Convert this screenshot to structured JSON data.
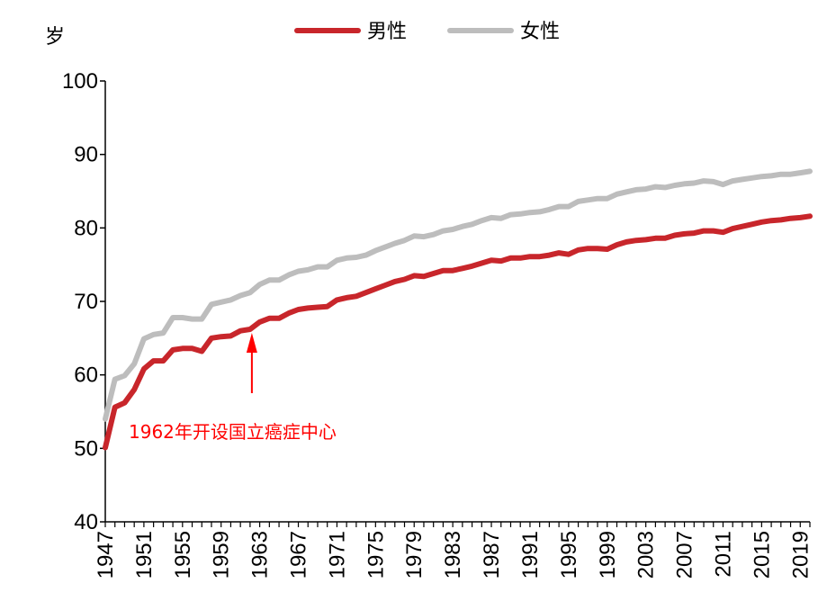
{
  "chart_data": {
    "type": "line",
    "ylabel": "岁",
    "ylim": [
      40,
      100
    ],
    "yticks": [
      40,
      50,
      60,
      70,
      80,
      90,
      100
    ],
    "xlim": [
      1947,
      2020
    ],
    "xtick_labels": [
      "1947",
      "1951",
      "1955",
      "1959",
      "1963",
      "1967",
      "1971",
      "1975",
      "1979",
      "1983",
      "1987",
      "1991",
      "1995",
      "1999",
      "2003",
      "2007",
      "2011",
      "2015",
      "2019"
    ],
    "legend_position": "top-center",
    "grid": false,
    "series": [
      {
        "name": "男性",
        "color": "#c8262b",
        "x": [
          1947,
          1948,
          1949,
          1950,
          1951,
          1952,
          1953,
          1954,
          1955,
          1956,
          1957,
          1958,
          1959,
          1960,
          1961,
          1962,
          1963,
          1964,
          1965,
          1966,
          1967,
          1968,
          1969,
          1970,
          1971,
          1972,
          1973,
          1974,
          1975,
          1976,
          1977,
          1978,
          1979,
          1980,
          1981,
          1982,
          1983,
          1984,
          1985,
          1986,
          1987,
          1988,
          1989,
          1990,
          1991,
          1992,
          1993,
          1994,
          1995,
          1996,
          1997,
          1998,
          1999,
          2000,
          2001,
          2002,
          2003,
          2004,
          2005,
          2006,
          2007,
          2008,
          2009,
          2010,
          2011,
          2012,
          2013,
          2014,
          2015,
          2016,
          2017,
          2018,
          2019,
          2020
        ],
        "values": [
          50.1,
          55.6,
          56.2,
          58.0,
          60.8,
          61.9,
          61.9,
          63.4,
          63.6,
          63.6,
          63.2,
          65.0,
          65.2,
          65.3,
          66.0,
          66.2,
          67.2,
          67.7,
          67.7,
          68.4,
          68.9,
          69.1,
          69.2,
          69.3,
          70.2,
          70.5,
          70.7,
          71.2,
          71.7,
          72.2,
          72.7,
          73.0,
          73.5,
          73.4,
          73.8,
          74.2,
          74.2,
          74.5,
          74.8,
          75.2,
          75.6,
          75.5,
          75.9,
          75.9,
          76.1,
          76.1,
          76.3,
          76.6,
          76.4,
          77.0,
          77.2,
          77.2,
          77.1,
          77.7,
          78.1,
          78.3,
          78.4,
          78.6,
          78.6,
          79.0,
          79.2,
          79.3,
          79.6,
          79.6,
          79.4,
          79.9,
          80.2,
          80.5,
          80.8,
          81.0,
          81.1,
          81.3,
          81.4,
          81.6
        ]
      },
      {
        "name": "女性",
        "color": "#bdbdbd",
        "x": [
          1947,
          1948,
          1949,
          1950,
          1951,
          1952,
          1953,
          1954,
          1955,
          1956,
          1957,
          1958,
          1959,
          1960,
          1961,
          1962,
          1963,
          1964,
          1965,
          1966,
          1967,
          1968,
          1969,
          1970,
          1971,
          1972,
          1973,
          1974,
          1975,
          1976,
          1977,
          1978,
          1979,
          1980,
          1981,
          1982,
          1983,
          1984,
          1985,
          1986,
          1987,
          1988,
          1989,
          1990,
          1991,
          1992,
          1993,
          1994,
          1995,
          1996,
          1997,
          1998,
          1999,
          2000,
          2001,
          2002,
          2003,
          2004,
          2005,
          2006,
          2007,
          2008,
          2009,
          2010,
          2011,
          2012,
          2013,
          2014,
          2015,
          2016,
          2017,
          2018,
          2019,
          2020
        ],
        "values": [
          54.0,
          59.4,
          59.9,
          61.5,
          64.9,
          65.5,
          65.7,
          67.8,
          67.8,
          67.6,
          67.6,
          69.6,
          69.9,
          70.2,
          70.8,
          71.2,
          72.3,
          72.9,
          72.9,
          73.6,
          74.1,
          74.3,
          74.7,
          74.7,
          75.6,
          75.9,
          76.0,
          76.3,
          76.9,
          77.4,
          77.9,
          78.3,
          78.9,
          78.8,
          79.1,
          79.6,
          79.8,
          80.2,
          80.5,
          81.0,
          81.4,
          81.3,
          81.8,
          81.9,
          82.1,
          82.2,
          82.5,
          82.9,
          82.9,
          83.6,
          83.8,
          84.0,
          84.0,
          84.6,
          84.9,
          85.2,
          85.3,
          85.6,
          85.5,
          85.8,
          86.0,
          86.1,
          86.4,
          86.3,
          85.9,
          86.4,
          86.6,
          86.8,
          87.0,
          87.1,
          87.3,
          87.3,
          87.5,
          87.7
        ]
      }
    ],
    "annotations": [
      {
        "text": "1962年开设国立癌症中心",
        "x": 1962,
        "color": "#ff0000"
      }
    ]
  }
}
